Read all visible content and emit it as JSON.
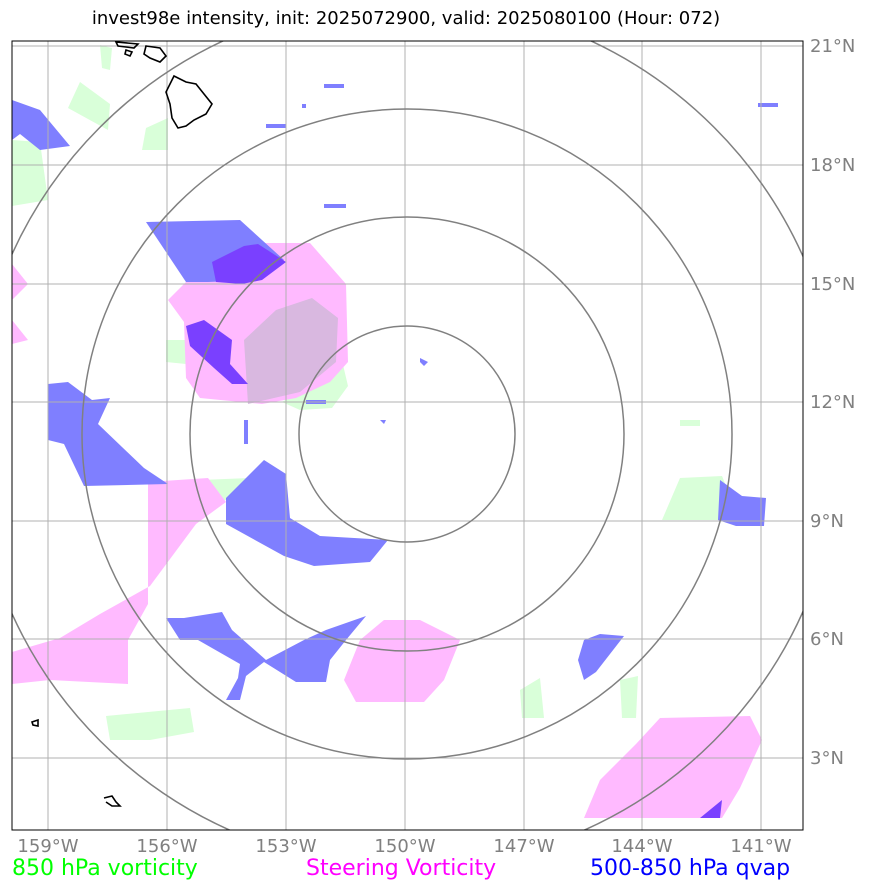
{
  "title": "invest98e intensity, init: 2025072900, valid: 2025080100 (Hour: 072)",
  "axes": {
    "lon_ticks": [
      "159°W",
      "156°W",
      "153°W",
      "150°W",
      "147°W",
      "144°W",
      "141°W"
    ],
    "lat_ticks": [
      "21°N",
      "18°N",
      "15°N",
      "12°N",
      "9°N",
      "6°N",
      "3°N"
    ],
    "tick_color": "#808080"
  },
  "legend": [
    {
      "label": "850 hPa vorticity",
      "color": "#00ff00"
    },
    {
      "label": "Steering Vorticity",
      "color": "#ff00ff"
    },
    {
      "label": "500-850 hPa qvap",
      "color": "#0000ff"
    }
  ],
  "colors": {
    "vorticity_850": "#d9ffd9",
    "steering_vorticity": "#ffbaff",
    "qvap": "#7f7fff",
    "qvap_overlap": "#7a40ff",
    "range_rings": "#808080",
    "gridlines": "#b0b0b0",
    "coastline": "#000000"
  },
  "map": {
    "lon_range": [
      -160,
      -139
    ],
    "lat_range": [
      1.5,
      21.5
    ],
    "storm_center": {
      "lon": -150,
      "lat": 11.2
    },
    "range_rings_deg": [
      2.75,
      5.5,
      8.25,
      11
    ]
  }
}
